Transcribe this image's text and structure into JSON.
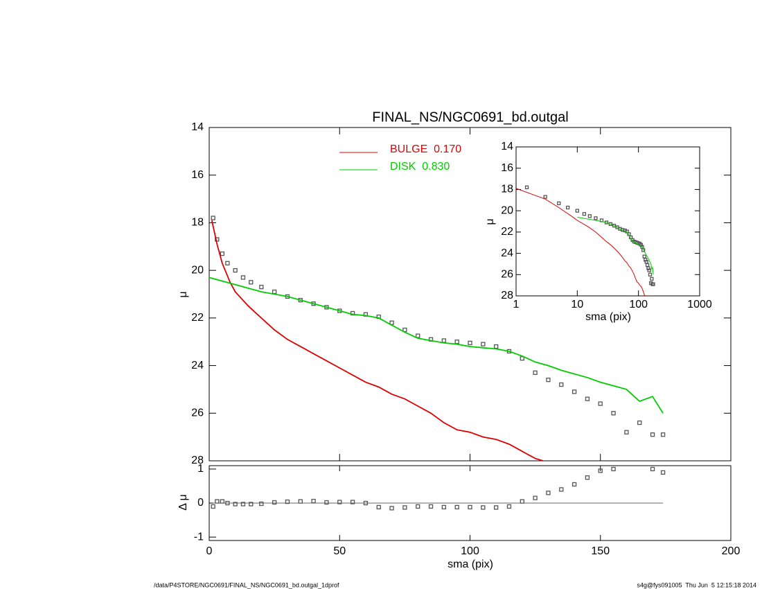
{
  "chart_data": {
    "type": "profile",
    "title": "FINAL_NS/NGC0691_bd.outgal",
    "x_label": "sma (pix)",
    "y_label": "μ",
    "xlim": [
      0,
      200
    ],
    "xticks": [
      0,
      50,
      100,
      150,
      200
    ],
    "ylim": [
      28,
      14
    ],
    "yticks": [
      14,
      16,
      18,
      20,
      22,
      24,
      26,
      28
    ],
    "points": {
      "color": "#555555",
      "x": [
        1.5,
        3,
        5,
        7,
        10,
        13,
        16,
        20,
        25,
        30,
        35,
        40,
        45,
        50,
        55,
        60,
        65,
        70,
        75,
        80,
        85,
        90,
        95,
        100,
        105,
        110,
        115,
        120,
        125,
        130,
        135,
        140,
        145,
        150,
        155,
        160,
        165,
        170,
        174
      ],
      "values": [
        17.8,
        18.7,
        19.3,
        19.7,
        20.0,
        20.3,
        20.5,
        20.7,
        20.9,
        21.1,
        21.25,
        21.4,
        21.55,
        21.7,
        21.8,
        21.85,
        21.95,
        22.2,
        22.5,
        22.75,
        22.9,
        22.95,
        23.0,
        23.05,
        23.1,
        23.2,
        23.4,
        23.7,
        24.3,
        24.6,
        24.8,
        25.1,
        25.4,
        25.6,
        26.0,
        26.8,
        26.4,
        26.9,
        26.9
      ]
    },
    "series": [
      {
        "name": "BULGE  0.170",
        "color": "#dd0000",
        "x": [
          1,
          3,
          5,
          8,
          10,
          15,
          20,
          25,
          30,
          35,
          40,
          45,
          50,
          55,
          60,
          65,
          70,
          75,
          80,
          85,
          90,
          95,
          100,
          105,
          110,
          115,
          120,
          125,
          128
        ],
        "values": [
          17.9,
          18.9,
          19.7,
          20.5,
          20.9,
          21.5,
          22.0,
          22.5,
          22.9,
          23.2,
          23.5,
          23.8,
          24.1,
          24.4,
          24.7,
          24.9,
          25.2,
          25.4,
          25.7,
          26.0,
          26.4,
          26.7,
          26.8,
          27.0,
          27.1,
          27.3,
          27.6,
          27.9,
          28.0
        ]
      },
      {
        "name": "DISK  0.830",
        "color": "#00cc00",
        "x": [
          0,
          10,
          20,
          30,
          40,
          50,
          55,
          60,
          65,
          70,
          75,
          80,
          85,
          90,
          95,
          100,
          105,
          110,
          115,
          120,
          125,
          130,
          135,
          140,
          145,
          150,
          155,
          160,
          165,
          170,
          174
        ],
        "values": [
          20.3,
          20.6,
          20.9,
          21.1,
          21.4,
          21.7,
          21.85,
          21.9,
          22.0,
          22.3,
          22.6,
          22.85,
          22.95,
          23.05,
          23.1,
          23.2,
          23.25,
          23.3,
          23.4,
          23.6,
          23.85,
          24.0,
          24.2,
          24.35,
          24.5,
          24.7,
          24.85,
          25.0,
          25.5,
          25.3,
          26.0
        ]
      }
    ],
    "residuals": {
      "y_label": "Δ μ",
      "ylim": [
        -1.1,
        1.1
      ],
      "yticks": [
        -1,
        0,
        1
      ],
      "values": [
        -0.1,
        0.05,
        0.05,
        0.0,
        -0.03,
        -0.03,
        -0.03,
        -0.02,
        0.02,
        0.04,
        0.05,
        0.06,
        0.02,
        0.03,
        0.03,
        0.0,
        -0.12,
        -0.15,
        -0.13,
        -0.1,
        -0.1,
        -0.12,
        -0.12,
        -0.12,
        -0.13,
        -0.13,
        -0.1,
        0.05,
        0.15,
        0.3,
        0.4,
        0.55,
        0.75,
        0.95,
        1.0,
        null,
        null,
        1.0,
        0.9
      ]
    },
    "inset": {
      "log_x": true,
      "x_label": "sma (pix)",
      "y_label": "μ",
      "xlim": [
        1,
        1000
      ],
      "xticks": [
        1,
        10,
        100,
        1000
      ],
      "ylim": [
        28,
        14
      ],
      "yticks": [
        14,
        16,
        18,
        20,
        22,
        24,
        26,
        28
      ]
    },
    "footer_left": "/data/P4STORE/NGC0691/FINAL_NS/NGC0691_bd.outgal_1dprof",
    "footer_right": "s4g@fys091005  Thu Jun  5 12:15:18 2014"
  }
}
